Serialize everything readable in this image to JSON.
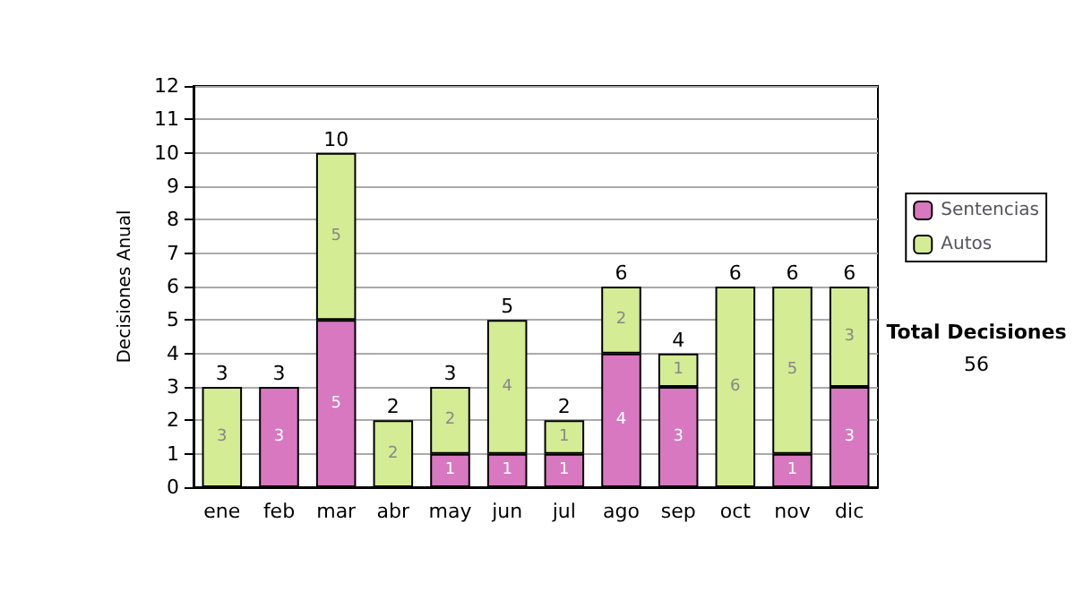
{
  "chart_data": {
    "type": "bar",
    "stacked": true,
    "ylabel": "Decisiones Anual",
    "categories": [
      "ene",
      "feb",
      "mar",
      "abr",
      "may",
      "jun",
      "jul",
      "ago",
      "sep",
      "oct",
      "nov",
      "dic"
    ],
    "series": [
      {
        "name": "Sentencias",
        "color": "#d878c0",
        "values": [
          null,
          3,
          5,
          null,
          1,
          1,
          1,
          4,
          3,
          null,
          1,
          3
        ]
      },
      {
        "name": "Autos",
        "color": "#d4ec94",
        "values": [
          3,
          null,
          5,
          2,
          2,
          4,
          1,
          2,
          1,
          6,
          5,
          3
        ]
      }
    ],
    "totals": [
      "3",
      "3",
      "10",
      "2",
      "3",
      "5",
      "2",
      "6",
      "4",
      "6",
      "6",
      "6"
    ],
    "ylim": [
      0,
      12
    ],
    "yticks": [
      0,
      1,
      2,
      3,
      4,
      5,
      6,
      7,
      8,
      9,
      10,
      11,
      12
    ],
    "grid": "y",
    "legend": "right",
    "data_labels": true,
    "annotations": [
      "Total Decisiones",
      "56"
    ]
  }
}
